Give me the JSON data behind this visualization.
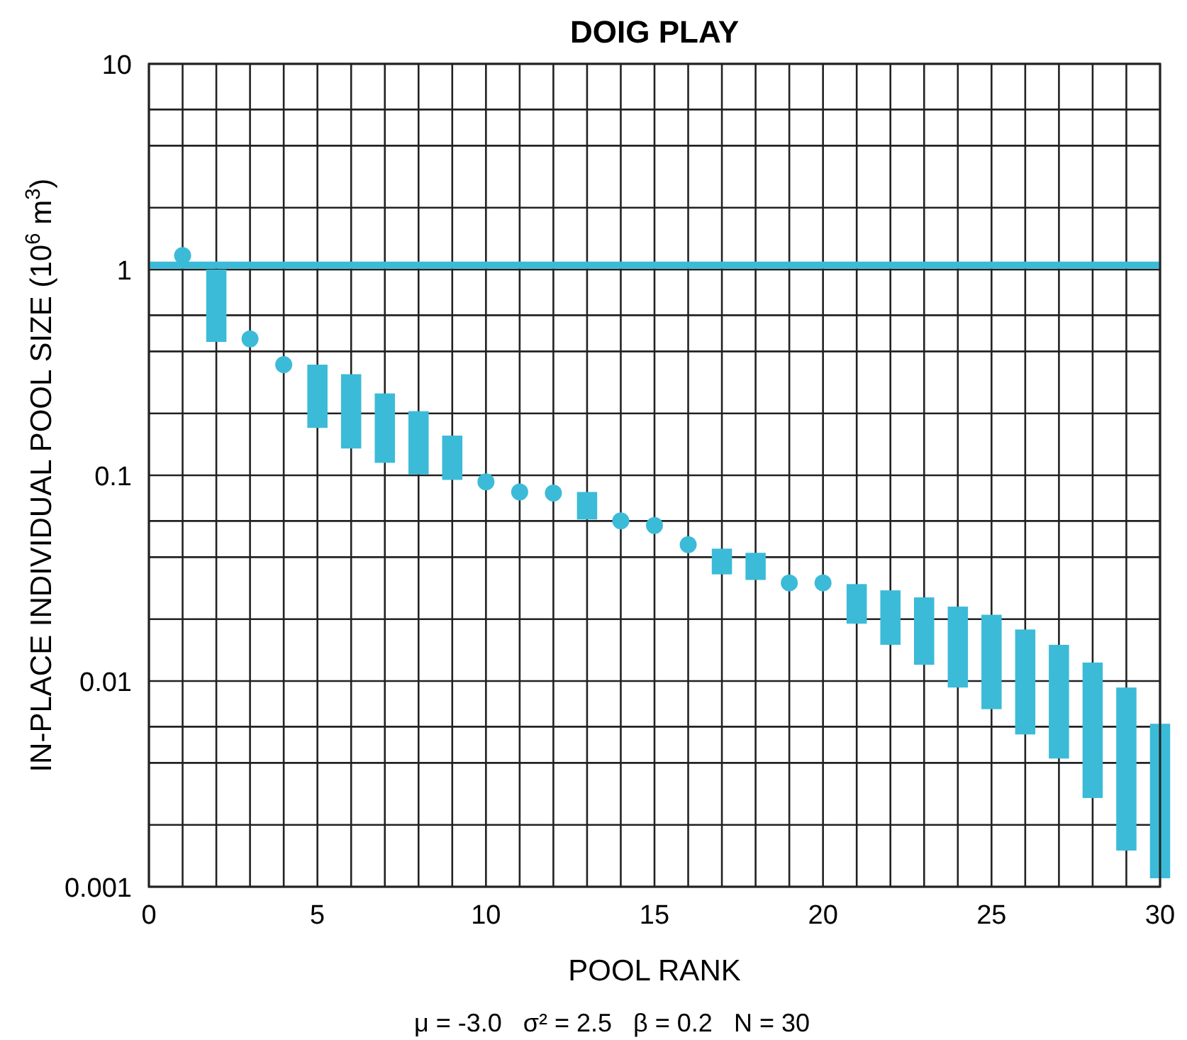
{
  "chart_data": {
    "type": "bar",
    "title": "DOIG PLAY",
    "xlabel": "POOL RANK",
    "ylabel": "IN-PLACE INDIVIDUAL POOL SIZE (10$^{6}$ m$^{3}$)",
    "annotations": [
      "μ = -3.0   σ² = 2.5   β = 0.2   N = 30"
    ],
    "log": "y",
    "grid": true,
    "xlim": [
      0,
      30
    ],
    "ylim": [
      0.001,
      10
    ],
    "xticks": [
      0,
      {
        "value": 1,
        "label": null
      },
      {
        "value": 2,
        "label": null
      },
      {
        "value": 3,
        "label": null
      },
      {
        "value": 4,
        "label": null
      },
      5,
      {
        "value": 6,
        "label": null
      },
      {
        "value": 7,
        "label": null
      },
      {
        "value": 8,
        "label": null
      },
      {
        "value": 9,
        "label": null
      },
      10,
      {
        "value": 11,
        "label": null
      },
      {
        "value": 12,
        "label": null
      },
      {
        "value": 13,
        "label": null
      },
      {
        "value": 14,
        "label": null
      },
      15,
      {
        "value": 16,
        "label": null
      },
      {
        "value": 17,
        "label": null
      },
      {
        "value": 18,
        "label": null
      },
      {
        "value": 19,
        "label": null
      },
      20,
      {
        "value": 21,
        "label": null
      },
      {
        "value": 22,
        "label": null
      },
      {
        "value": 23,
        "label": null
      },
      {
        "value": 24,
        "label": null
      },
      25,
      {
        "value": 26,
        "label": null
      },
      {
        "value": 27,
        "label": null
      },
      {
        "value": 28,
        "label": null
      },
      {
        "value": 29,
        "label": null
      },
      30
    ],
    "yticks": [
      0.001,
      {
        "value": 0.002,
        "label": null
      },
      {
        "value": 0.004,
        "label": null
      },
      {
        "value": 0.006,
        "label": null
      },
      0.01,
      {
        "value": 0.02,
        "label": null
      },
      {
        "value": 0.04,
        "label": null
      },
      {
        "value": 0.06,
        "label": null
      },
      0.1,
      {
        "value": 0.2,
        "label": null
      },
      {
        "value": 0.4,
        "label": null
      },
      {
        "value": 0.6,
        "label": null
      },
      1,
      {
        "value": 2,
        "label": null
      },
      {
        "value": 4,
        "label": null
      },
      {
        "value": 6,
        "label": null
      },
      10
    ],
    "ref_lines": [
      {
        "axis": "y",
        "value": 1.05,
        "color": "#3bbbd8"
      }
    ],
    "series": [
      {
        "color": "#3bbbd8",
        "x": [
          2,
          5,
          6,
          7,
          8,
          9,
          13,
          17,
          18,
          21,
          22,
          23,
          24,
          25,
          26,
          27,
          28,
          29,
          30
        ],
        "base": [
          0.445,
          0.17,
          0.135,
          0.115,
          0.101,
          0.095,
          0.061,
          0.033,
          0.031,
          0.019,
          0.015,
          0.012,
          0.0093,
          0.0073,
          0.0055,
          0.0042,
          0.0027,
          0.0015,
          0.0011
        ],
        "values": [
          0.555,
          0.175,
          0.175,
          0.135,
          0.104,
          0.061,
          0.022,
          0.011,
          0.011,
          0.0106,
          0.0126,
          0.0135,
          0.0137,
          0.0137,
          0.0123,
          0.0108,
          0.0096,
          0.0078,
          0.0051
        ]
      },
      {
        "type": "scatter",
        "color": "#3bbbd8",
        "marker": "circle",
        "x": [
          1,
          3,
          4,
          10,
          11,
          12,
          14,
          15,
          16,
          19,
          20
        ],
        "values": [
          1.17,
          0.46,
          0.345,
          0.093,
          0.083,
          0.082,
          0.06,
          0.057,
          0.046,
          0.03,
          0.03
        ]
      }
    ]
  }
}
